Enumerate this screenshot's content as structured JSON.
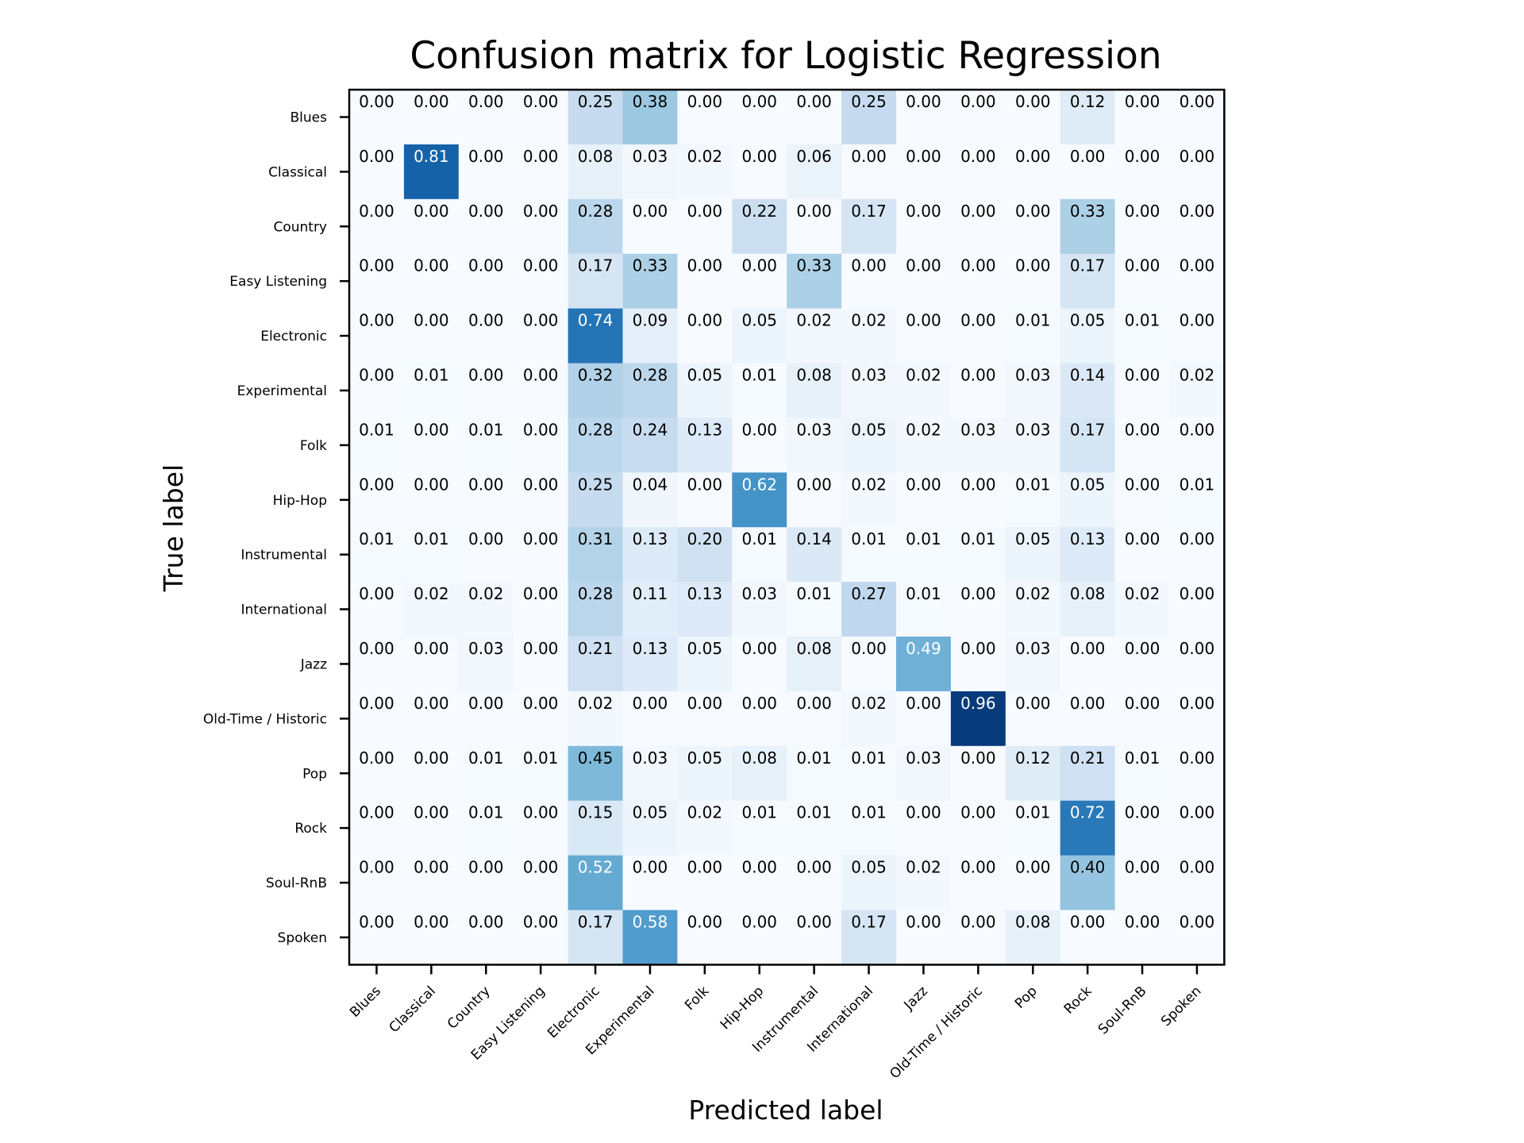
{
  "chart_data": {
    "type": "heatmap",
    "title": "Confusion matrix for Logistic Regression",
    "xlabel": "Predicted label",
    "ylabel": "True label",
    "colormap": "Blues",
    "value_range": [
      0,
      1
    ],
    "x_categories": [
      "Blues",
      "Classical",
      "Country",
      "Easy Listening",
      "Electronic",
      "Experimental",
      "Folk",
      "Hip-Hop",
      "Instrumental",
      "International",
      "Jazz",
      "Old-Time / Historic",
      "Pop",
      "Rock",
      "Soul-RnB",
      "Spoken"
    ],
    "y_categories": [
      "Blues",
      "Classical",
      "Country",
      "Easy Listening",
      "Electronic",
      "Experimental",
      "Folk",
      "Hip-Hop",
      "Instrumental",
      "International",
      "Jazz",
      "Old-Time / Historic",
      "Pop",
      "Rock",
      "Soul-RnB",
      "Spoken"
    ],
    "values": [
      [
        0.0,
        0.0,
        0.0,
        0.0,
        0.25,
        0.38,
        0.0,
        0.0,
        0.0,
        0.25,
        0.0,
        0.0,
        0.0,
        0.12,
        0.0,
        0.0
      ],
      [
        0.0,
        0.81,
        0.0,
        0.0,
        0.08,
        0.03,
        0.02,
        0.0,
        0.06,
        0.0,
        0.0,
        0.0,
        0.0,
        0.0,
        0.0,
        0.0
      ],
      [
        0.0,
        0.0,
        0.0,
        0.0,
        0.28,
        0.0,
        0.0,
        0.22,
        0.0,
        0.17,
        0.0,
        0.0,
        0.0,
        0.33,
        0.0,
        0.0
      ],
      [
        0.0,
        0.0,
        0.0,
        0.0,
        0.17,
        0.33,
        0.0,
        0.0,
        0.33,
        0.0,
        0.0,
        0.0,
        0.0,
        0.17,
        0.0,
        0.0
      ],
      [
        0.0,
        0.0,
        0.0,
        0.0,
        0.74,
        0.09,
        0.0,
        0.05,
        0.02,
        0.02,
        0.0,
        0.0,
        0.01,
        0.05,
        0.01,
        0.0
      ],
      [
        0.0,
        0.01,
        0.0,
        0.0,
        0.32,
        0.28,
        0.05,
        0.01,
        0.08,
        0.03,
        0.02,
        0.0,
        0.03,
        0.14,
        0.0,
        0.02
      ],
      [
        0.01,
        0.0,
        0.01,
        0.0,
        0.28,
        0.24,
        0.13,
        0.0,
        0.03,
        0.05,
        0.02,
        0.03,
        0.03,
        0.17,
        0.0,
        0.0
      ],
      [
        0.0,
        0.0,
        0.0,
        0.0,
        0.25,
        0.04,
        0.0,
        0.62,
        0.0,
        0.02,
        0.0,
        0.0,
        0.01,
        0.05,
        0.0,
        0.01
      ],
      [
        0.01,
        0.01,
        0.0,
        0.0,
        0.31,
        0.13,
        0.2,
        0.01,
        0.14,
        0.01,
        0.01,
        0.01,
        0.05,
        0.13,
        0.0,
        0.0
      ],
      [
        0.0,
        0.02,
        0.02,
        0.0,
        0.28,
        0.11,
        0.13,
        0.03,
        0.01,
        0.27,
        0.01,
        0.0,
        0.02,
        0.08,
        0.02,
        0.0
      ],
      [
        0.0,
        0.0,
        0.03,
        0.0,
        0.21,
        0.13,
        0.05,
        0.0,
        0.08,
        0.0,
        0.49,
        0.0,
        0.03,
        0.0,
        0.0,
        0.0
      ],
      [
        0.0,
        0.0,
        0.0,
        0.0,
        0.02,
        0.0,
        0.0,
        0.0,
        0.0,
        0.02,
        0.0,
        0.96,
        0.0,
        0.0,
        0.0,
        0.0
      ],
      [
        0.0,
        0.0,
        0.01,
        0.01,
        0.45,
        0.03,
        0.05,
        0.08,
        0.01,
        0.01,
        0.03,
        0.0,
        0.12,
        0.21,
        0.01,
        0.0
      ],
      [
        0.0,
        0.0,
        0.01,
        0.0,
        0.15,
        0.05,
        0.02,
        0.01,
        0.01,
        0.01,
        0.0,
        0.0,
        0.01,
        0.72,
        0.0,
        0.0
      ],
      [
        0.0,
        0.0,
        0.0,
        0.0,
        0.52,
        0.0,
        0.0,
        0.0,
        0.0,
        0.05,
        0.02,
        0.0,
        0.0,
        0.4,
        0.0,
        0.0
      ],
      [
        0.0,
        0.0,
        0.0,
        0.0,
        0.17,
        0.58,
        0.0,
        0.0,
        0.0,
        0.17,
        0.0,
        0.0,
        0.08,
        0.0,
        0.0,
        0.0
      ]
    ],
    "value_format": "2 decimals",
    "text_color_threshold": 0.48,
    "grid": false
  }
}
